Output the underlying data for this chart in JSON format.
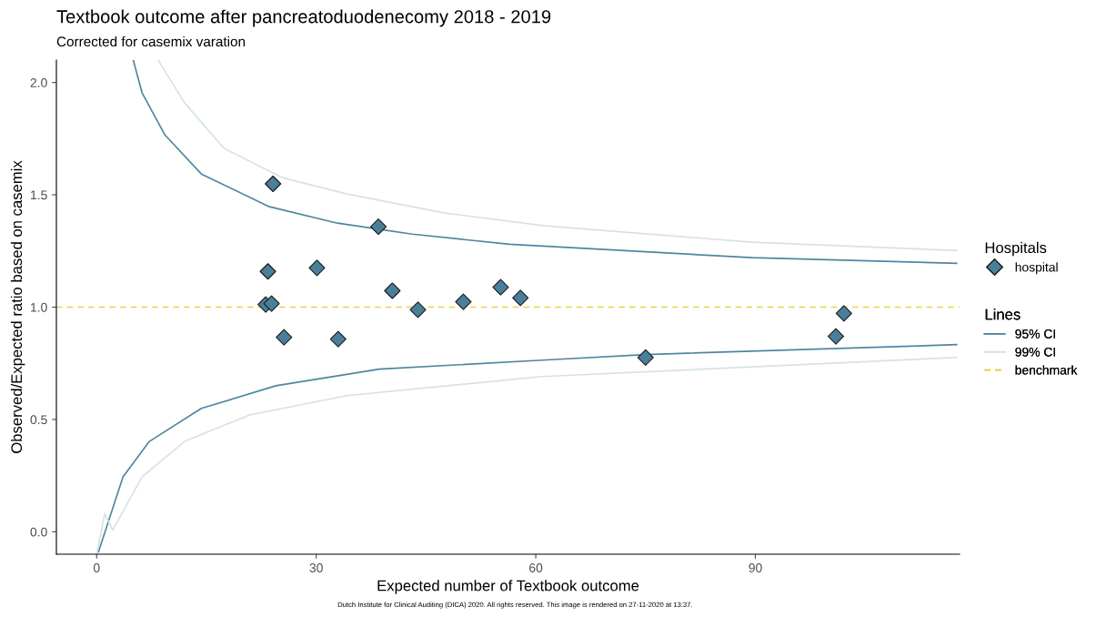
{
  "chart_data": {
    "type": "scatter",
    "title": "Textbook outcome after pancreatoduodenecomy 2018 - 2019",
    "subtitle": "Corrected for casemix varation",
    "xlabel": "Expected number of Textbook outcome",
    "ylabel": "Observed/Expected ratio based on casemix",
    "legend_title": [
      "Hospitals",
      "Lines"
    ],
    "xlim": [
      -5.5,
      117.9
    ],
    "ylim": [
      -0.1,
      2.1
    ],
    "xticks": [
      0,
      30,
      60,
      90
    ],
    "yticks": [
      {
        "value": 0,
        "label": "0.0"
      },
      {
        "value": 0.5,
        "label": "0.5"
      },
      {
        "value": 1,
        "label": "1.0"
      },
      {
        "value": 1.5,
        "label": "1.5"
      },
      {
        "value": 2,
        "label": "2.0"
      }
    ],
    "grid": false,
    "legend": "right",
    "series": [
      {
        "name": "hospital",
        "marker": "diamond",
        "color": "#4a7f9a",
        "x": [
          24.1,
          38.5,
          23.4,
          30.1,
          23.1,
          23.9,
          25.6,
          33.0,
          40.4,
          43.9,
          50.1,
          55.2,
          57.9,
          75.0,
          101.0,
          102.1
        ],
        "values": [
          1.549,
          1.358,
          1.159,
          1.175,
          1.012,
          1.016,
          0.866,
          0.858,
          1.073,
          0.988,
          1.024,
          1.089,
          1.041,
          0.776,
          0.87,
          0.972
        ]
      },
      {
        "name": "95% CI",
        "type": "line",
        "color": "#4f86a0",
        "x": [
          5.0,
          6.2,
          9.3,
          14.3,
          23.6,
          32.9,
          43.1,
          56.4,
          89.6,
          117.5
        ],
        "values": [
          2.1,
          1.955,
          1.768,
          1.593,
          1.447,
          1.374,
          1.325,
          1.28,
          1.22,
          1.195
        ]
      },
      {
        "type": "line",
        "color": "#4f86a0",
        "x": [
          0.25,
          3.6,
          7.2,
          14.3,
          24.5,
          38.6,
          60.9,
          75.0,
          117.5
        ],
        "values": [
          -0.09,
          0.244,
          0.402,
          0.549,
          0.65,
          0.724,
          0.764,
          0.789,
          0.833
        ]
      },
      {
        "name": "99% CI",
        "type": "line",
        "color": "#d5e3e3",
        "x": [
          8.4,
          12.0,
          17.4,
          25.3,
          34.2,
          47.6,
          61.2,
          89.6,
          117.5
        ],
        "values": [
          2.1,
          1.91,
          1.707,
          1.577,
          1.504,
          1.419,
          1.362,
          1.289,
          1.252
        ]
      },
      {
        "type": "line",
        "color": "#d5e3e3",
        "x": [
          0.0,
          1.1,
          2.2,
          6.2,
          12.0,
          20.9,
          34.2,
          60.9,
          117.5
        ],
        "values": [
          -0.1,
          0.08,
          0.008,
          0.244,
          0.402,
          0.52,
          0.606,
          0.691,
          0.776
        ]
      }
    ],
    "ref_lines": [
      {
        "axis": "y",
        "value": 1,
        "label": "benchmark",
        "color": "#e6d44a",
        "line_style": "dashed"
      }
    ],
    "annotations": [
      "Dutch Institute for Clinical Auditing (DICA) 2020. All rights reserved. This image is rendered on 27-11-2020 at 13:37."
    ]
  }
}
